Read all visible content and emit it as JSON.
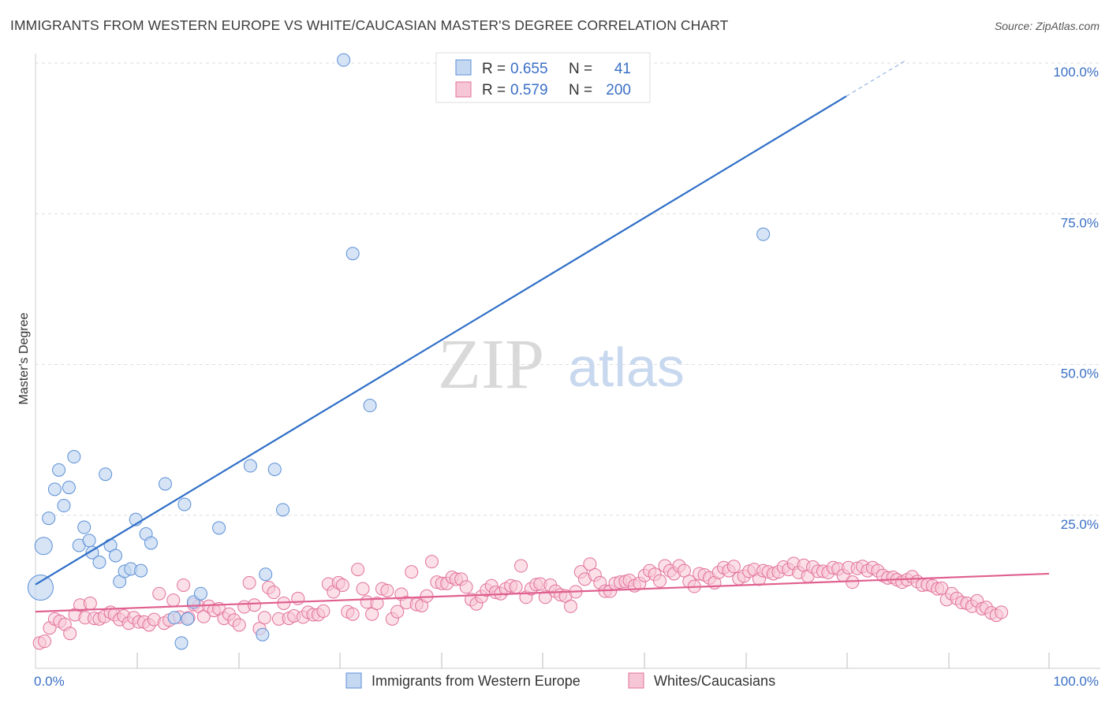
{
  "title": "IMMIGRANTS FROM WESTERN EUROPE VS WHITE/CAUCASIAN MASTER'S DEGREE CORRELATION CHART",
  "source": "Source: ZipAtlas.com",
  "watermark": {
    "zip": "ZIP",
    "atlas": "atlas"
  },
  "colors": {
    "blue": "#5b8fd6",
    "blue_fill": "#c5d8f2",
    "blue_line": "#2f6fc7",
    "pink": "#e2719a",
    "pink_fill": "#f7c6d6",
    "pink_line": "#e0608f",
    "axis_text": "#3a6fc4",
    "grid": "#dddddd"
  },
  "stats_box": {
    "rows": [
      {
        "series": "Immigrants from Western Europe",
        "r_label": "R =",
        "r_value": "0.655",
        "n_label": "N =",
        "n_value": "41"
      },
      {
        "series": "Whites/Caucasians",
        "r_label": "R =",
        "r_value": "0.579",
        "n_label": "N =",
        "n_value": "200"
      }
    ]
  },
  "chart_data": {
    "type": "scatter",
    "title": "IMMIGRANTS FROM WESTERN EUROPE VS WHITE/CAUCASIAN MASTER'S DEGREE CORRELATION CHART",
    "xlabel": "",
    "ylabel": "Master's Degree",
    "xlim": [
      0,
      100
    ],
    "ylim": [
      0,
      100
    ],
    "x_tick_labels": [
      "0.0%",
      "100.0%"
    ],
    "y_ticks": [
      25,
      50,
      75,
      100
    ],
    "y_tick_labels": [
      "25.0%",
      "50.0%",
      "75.0%",
      "100.0%"
    ],
    "grid": true,
    "legend": [
      "Immigrants from Western Europe",
      "Whites/Caucasians"
    ],
    "series": [
      {
        "name": "Immigrants from Western Europe",
        "r": 0.655,
        "n": 41,
        "trend": {
          "x0": 0,
          "y0": 13.5,
          "x1": 80,
          "y1": 94.5,
          "dash_to_x": 86
        },
        "points": [
          [
            0.5,
            13.0,
            16
          ],
          [
            0.8,
            19.9,
            11
          ],
          [
            1.3,
            24.5,
            8
          ],
          [
            1.9,
            29.3,
            8
          ],
          [
            2.3,
            32.5,
            8
          ],
          [
            2.8,
            26.6,
            8
          ],
          [
            3.3,
            29.6,
            8
          ],
          [
            3.8,
            34.7,
            8
          ],
          [
            4.3,
            20.0,
            8
          ],
          [
            4.8,
            23.0,
            8
          ],
          [
            5.3,
            20.8,
            8
          ],
          [
            5.6,
            18.8,
            8
          ],
          [
            6.3,
            17.2,
            8
          ],
          [
            6.9,
            31.8,
            8
          ],
          [
            7.4,
            20.0,
            8
          ],
          [
            7.9,
            18.3,
            8
          ],
          [
            8.3,
            14.0,
            8
          ],
          [
            8.8,
            15.7,
            8
          ],
          [
            9.4,
            16.1,
            8
          ],
          [
            9.9,
            24.3,
            8
          ],
          [
            10.4,
            15.8,
            8
          ],
          [
            10.9,
            21.9,
            8
          ],
          [
            11.4,
            20.4,
            8
          ],
          [
            12.8,
            30.2,
            8
          ],
          [
            13.7,
            8.0,
            8
          ],
          [
            14.4,
            3.8,
            8
          ],
          [
            14.7,
            26.8,
            8
          ],
          [
            15.0,
            7.8,
            8
          ],
          [
            15.6,
            10.6,
            8
          ],
          [
            16.3,
            12.0,
            8
          ],
          [
            18.1,
            22.9,
            8
          ],
          [
            21.2,
            33.2,
            8
          ],
          [
            22.4,
            5.2,
            8
          ],
          [
            22.7,
            15.2,
            8
          ],
          [
            23.6,
            32.6,
            8
          ],
          [
            24.4,
            25.9,
            8
          ],
          [
            30.4,
            100.5,
            8
          ],
          [
            31.3,
            68.4,
            8
          ],
          [
            33.0,
            43.2,
            8
          ],
          [
            71.8,
            71.6,
            8
          ]
        ]
      },
      {
        "name": "Whites/Caucasians",
        "r": 0.579,
        "n": 200,
        "trend": {
          "x0": 0,
          "y0": 9.0,
          "x1": 100,
          "y1": 15.3
        },
        "points": [
          [
            0.4,
            3.8
          ],
          [
            0.9,
            4.1
          ],
          [
            1.4,
            6.3
          ],
          [
            1.9,
            7.8
          ],
          [
            2.4,
            7.4
          ],
          [
            2.9,
            6.9
          ],
          [
            3.4,
            5.4
          ],
          [
            3.9,
            8.5
          ],
          [
            4.4,
            10.1
          ],
          [
            4.9,
            8.0
          ],
          [
            5.4,
            10.4
          ],
          [
            5.8,
            7.9
          ],
          [
            6.3,
            7.8
          ],
          [
            6.8,
            8.2
          ],
          [
            7.4,
            8.9
          ],
          [
            7.8,
            8.5
          ],
          [
            8.3,
            7.7
          ],
          [
            8.7,
            8.3
          ],
          [
            9.2,
            7.1
          ],
          [
            9.7,
            8.0
          ],
          [
            10.2,
            7.3
          ],
          [
            10.7,
            7.3
          ],
          [
            11.2,
            6.8
          ],
          [
            11.7,
            7.7
          ],
          [
            12.2,
            12.0
          ],
          [
            12.7,
            7.1
          ],
          [
            13.2,
            7.6
          ],
          [
            13.6,
            10.9
          ],
          [
            14.2,
            8.1
          ],
          [
            14.6,
            13.4
          ],
          [
            15.1,
            8.0
          ],
          [
            15.6,
            10.2
          ],
          [
            16.1,
            9.9
          ],
          [
            16.6,
            8.2
          ],
          [
            17.1,
            9.9
          ],
          [
            17.6,
            9.2
          ],
          [
            18.1,
            9.5
          ],
          [
            18.6,
            7.9
          ],
          [
            19.1,
            8.6
          ],
          [
            19.6,
            7.6
          ],
          [
            20.1,
            6.8
          ],
          [
            20.6,
            9.8
          ],
          [
            21.1,
            13.8
          ],
          [
            21.6,
            10.1
          ],
          [
            22.1,
            6.2
          ],
          [
            22.6,
            8.0
          ],
          [
            23.0,
            13.0
          ],
          [
            23.5,
            12.2
          ],
          [
            24.0,
            7.8
          ],
          [
            24.5,
            10.4
          ],
          [
            25.0,
            7.9
          ],
          [
            25.5,
            8.3
          ],
          [
            25.9,
            11.2
          ],
          [
            26.4,
            8.1
          ],
          [
            26.9,
            8.9
          ],
          [
            27.4,
            8.5
          ],
          [
            27.9,
            8.5
          ],
          [
            28.4,
            9.1
          ],
          [
            28.9,
            13.6
          ],
          [
            29.4,
            12.3
          ],
          [
            29.9,
            13.8
          ],
          [
            30.3,
            13.4
          ],
          [
            30.8,
            9.0
          ],
          [
            31.3,
            8.6
          ],
          [
            31.8,
            16.0
          ],
          [
            32.3,
            12.8
          ],
          [
            32.7,
            10.6
          ],
          [
            33.2,
            8.6
          ],
          [
            33.7,
            10.4
          ],
          [
            34.2,
            12.8
          ],
          [
            34.7,
            12.5
          ],
          [
            35.2,
            7.8
          ],
          [
            35.7,
            9.0
          ],
          [
            36.1,
            11.9
          ],
          [
            36.6,
            10.5
          ],
          [
            37.1,
            15.6
          ],
          [
            37.6,
            10.2
          ],
          [
            38.1,
            10.0
          ],
          [
            38.6,
            11.6
          ],
          [
            39.1,
            17.3
          ],
          [
            39.6,
            13.9
          ],
          [
            40.1,
            13.7
          ],
          [
            40.6,
            13.7
          ],
          [
            41.1,
            14.7
          ],
          [
            41.5,
            14.4
          ],
          [
            42.0,
            14.4
          ],
          [
            42.5,
            13.1
          ],
          [
            43.0,
            11.0
          ],
          [
            43.5,
            10.3
          ],
          [
            44.0,
            11.5
          ],
          [
            44.5,
            12.6
          ],
          [
            45.0,
            13.3
          ],
          [
            45.4,
            12.2
          ],
          [
            45.9,
            12.0
          ],
          [
            46.4,
            12.8
          ],
          [
            46.9,
            13.3
          ],
          [
            47.4,
            13.1
          ],
          [
            47.9,
            16.6
          ],
          [
            48.4,
            11.4
          ],
          [
            48.9,
            12.8
          ],
          [
            49.4,
            13.5
          ],
          [
            49.8,
            13.6
          ],
          [
            50.3,
            11.4
          ],
          [
            50.8,
            13.4
          ],
          [
            51.3,
            12.4
          ],
          [
            51.8,
            11.8
          ],
          [
            52.3,
            11.6
          ],
          [
            52.8,
            9.9
          ],
          [
            53.3,
            12.3
          ],
          [
            53.8,
            15.6
          ],
          [
            54.2,
            14.4
          ],
          [
            54.7,
            16.9
          ],
          [
            55.2,
            15.1
          ],
          [
            55.7,
            13.8
          ],
          [
            56.2,
            12.4
          ],
          [
            56.7,
            12.4
          ],
          [
            57.2,
            13.7
          ],
          [
            57.7,
            13.9
          ],
          [
            58.2,
            14.0
          ],
          [
            58.6,
            14.2
          ],
          [
            59.1,
            13.3
          ],
          [
            59.6,
            13.7
          ],
          [
            60.1,
            15.0
          ],
          [
            60.6,
            15.8
          ],
          [
            61.1,
            15.2
          ],
          [
            61.6,
            14.1
          ],
          [
            62.1,
            16.6
          ],
          [
            62.6,
            15.8
          ],
          [
            63.0,
            15.3
          ],
          [
            63.5,
            16.6
          ],
          [
            64.0,
            15.8
          ],
          [
            64.5,
            14.0
          ],
          [
            65.0,
            13.2
          ],
          [
            65.5,
            15.3
          ],
          [
            66.0,
            15.1
          ],
          [
            66.5,
            14.6
          ],
          [
            67.0,
            13.8
          ],
          [
            67.4,
            15.5
          ],
          [
            67.9,
            16.3
          ],
          [
            68.4,
            15.8
          ],
          [
            68.9,
            16.5
          ],
          [
            69.4,
            14.5
          ],
          [
            69.9,
            14.9
          ],
          [
            70.4,
            15.7
          ],
          [
            70.9,
            16.0
          ],
          [
            71.4,
            14.4
          ],
          [
            71.8,
            15.8
          ],
          [
            72.3,
            15.6
          ],
          [
            72.8,
            15.3
          ],
          [
            73.3,
            15.6
          ],
          [
            73.8,
            16.4
          ],
          [
            74.3,
            16.0
          ],
          [
            74.8,
            17.0
          ],
          [
            75.3,
            15.5
          ],
          [
            75.8,
            16.7
          ],
          [
            76.2,
            14.9
          ],
          [
            76.7,
            16.4
          ],
          [
            77.2,
            15.7
          ],
          [
            77.7,
            15.7
          ],
          [
            78.2,
            15.5
          ],
          [
            78.7,
            16.3
          ],
          [
            79.2,
            16.1
          ],
          [
            79.7,
            15.0
          ],
          [
            80.2,
            16.3
          ],
          [
            80.6,
            13.9
          ],
          [
            81.1,
            16.2
          ],
          [
            81.6,
            16.5
          ],
          [
            82.1,
            15.8
          ],
          [
            82.6,
            16.3
          ],
          [
            83.1,
            15.8
          ],
          [
            83.6,
            15.0
          ],
          [
            84.1,
            14.6
          ],
          [
            84.6,
            14.7
          ],
          [
            85.0,
            14.3
          ],
          [
            85.5,
            13.9
          ],
          [
            86.0,
            14.3
          ],
          [
            86.5,
            14.8
          ],
          [
            87.0,
            14.0
          ],
          [
            87.5,
            13.4
          ],
          [
            88.0,
            13.5
          ],
          [
            88.5,
            13.3
          ],
          [
            89.0,
            12.8
          ],
          [
            89.4,
            12.9
          ],
          [
            89.9,
            11.0
          ],
          [
            90.4,
            12.0
          ],
          [
            90.9,
            11.2
          ],
          [
            91.4,
            10.5
          ],
          [
            91.9,
            10.4
          ],
          [
            92.4,
            9.9
          ],
          [
            92.9,
            10.8
          ],
          [
            93.4,
            9.5
          ],
          [
            93.8,
            9.7
          ],
          [
            94.3,
            8.8
          ],
          [
            94.8,
            8.4
          ],
          [
            95.3,
            8.9
          ]
        ]
      }
    ]
  },
  "legend_bottom": [
    "Immigrants from Western Europe",
    "Whites/Caucasians"
  ]
}
